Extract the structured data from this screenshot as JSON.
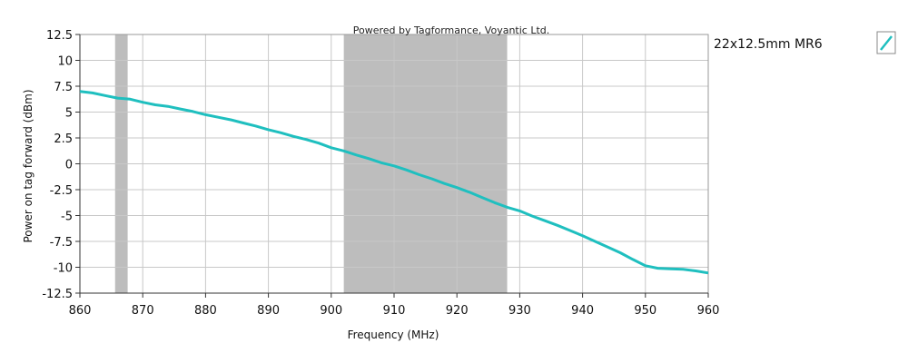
{
  "chart_data": {
    "type": "line",
    "watermark": "Powered by Tagformance, Voyantic Ltd.",
    "xlabel": "Frequency (MHz)",
    "ylabel": "Power on tag forward (dBm)",
    "xlim": [
      860,
      960
    ],
    "ylim": [
      -12.5,
      12.5
    ],
    "xticks": [
      860,
      870,
      880,
      890,
      900,
      910,
      920,
      930,
      940,
      950,
      960
    ],
    "yticks": [
      12.5,
      10,
      7.5,
      5,
      2.5,
      0,
      -2.5,
      -5,
      -7.5,
      -10,
      -12.5
    ],
    "xtick_labels": [
      "860",
      "870",
      "880",
      "890",
      "900",
      "910",
      "920",
      "930",
      "940",
      "950",
      "960"
    ],
    "ytick_labels": [
      "12.5",
      "10",
      "7.5",
      "5",
      "2.5",
      "0",
      "-2.5",
      "-5",
      "-7.5",
      "-10",
      "-12.5"
    ],
    "grid": true,
    "shaded_bands": [
      {
        "from": 865.6,
        "to": 867.6,
        "color": "#bdbdbd"
      },
      {
        "from": 902,
        "to": 928,
        "color": "#bdbdbd"
      }
    ],
    "series": [
      {
        "name": "22x12.5mm MR6",
        "color": "#1fbfbf",
        "x": [
          860,
          862,
          864,
          866,
          868,
          870,
          872,
          874,
          876,
          878,
          880,
          882,
          884,
          886,
          888,
          890,
          892,
          894,
          896,
          898,
          900,
          902,
          904,
          906,
          908,
          910,
          912,
          914,
          916,
          918,
          920,
          922,
          924,
          926,
          928,
          930,
          932,
          934,
          936,
          938,
          940,
          942,
          944,
          946,
          948,
          950,
          952,
          954,
          956,
          958,
          960
        ],
        "y": [
          7.0,
          6.85,
          6.6,
          6.35,
          6.25,
          5.95,
          5.7,
          5.55,
          5.3,
          5.05,
          4.75,
          4.5,
          4.25,
          3.95,
          3.65,
          3.3,
          3.0,
          2.65,
          2.35,
          2.0,
          1.55,
          1.25,
          0.85,
          0.5,
          0.1,
          -0.2,
          -0.6,
          -1.05,
          -1.45,
          -1.9,
          -2.3,
          -2.75,
          -3.25,
          -3.75,
          -4.2,
          -4.55,
          -5.05,
          -5.5,
          -5.95,
          -6.45,
          -6.95,
          -7.5,
          -8.05,
          -8.6,
          -9.25,
          -9.85,
          -10.1,
          -10.15,
          -10.2,
          -10.35,
          -10.55
        ]
      }
    ],
    "legend": {
      "placement": "right",
      "entries": [
        "22x12.5mm MR6"
      ]
    }
  }
}
